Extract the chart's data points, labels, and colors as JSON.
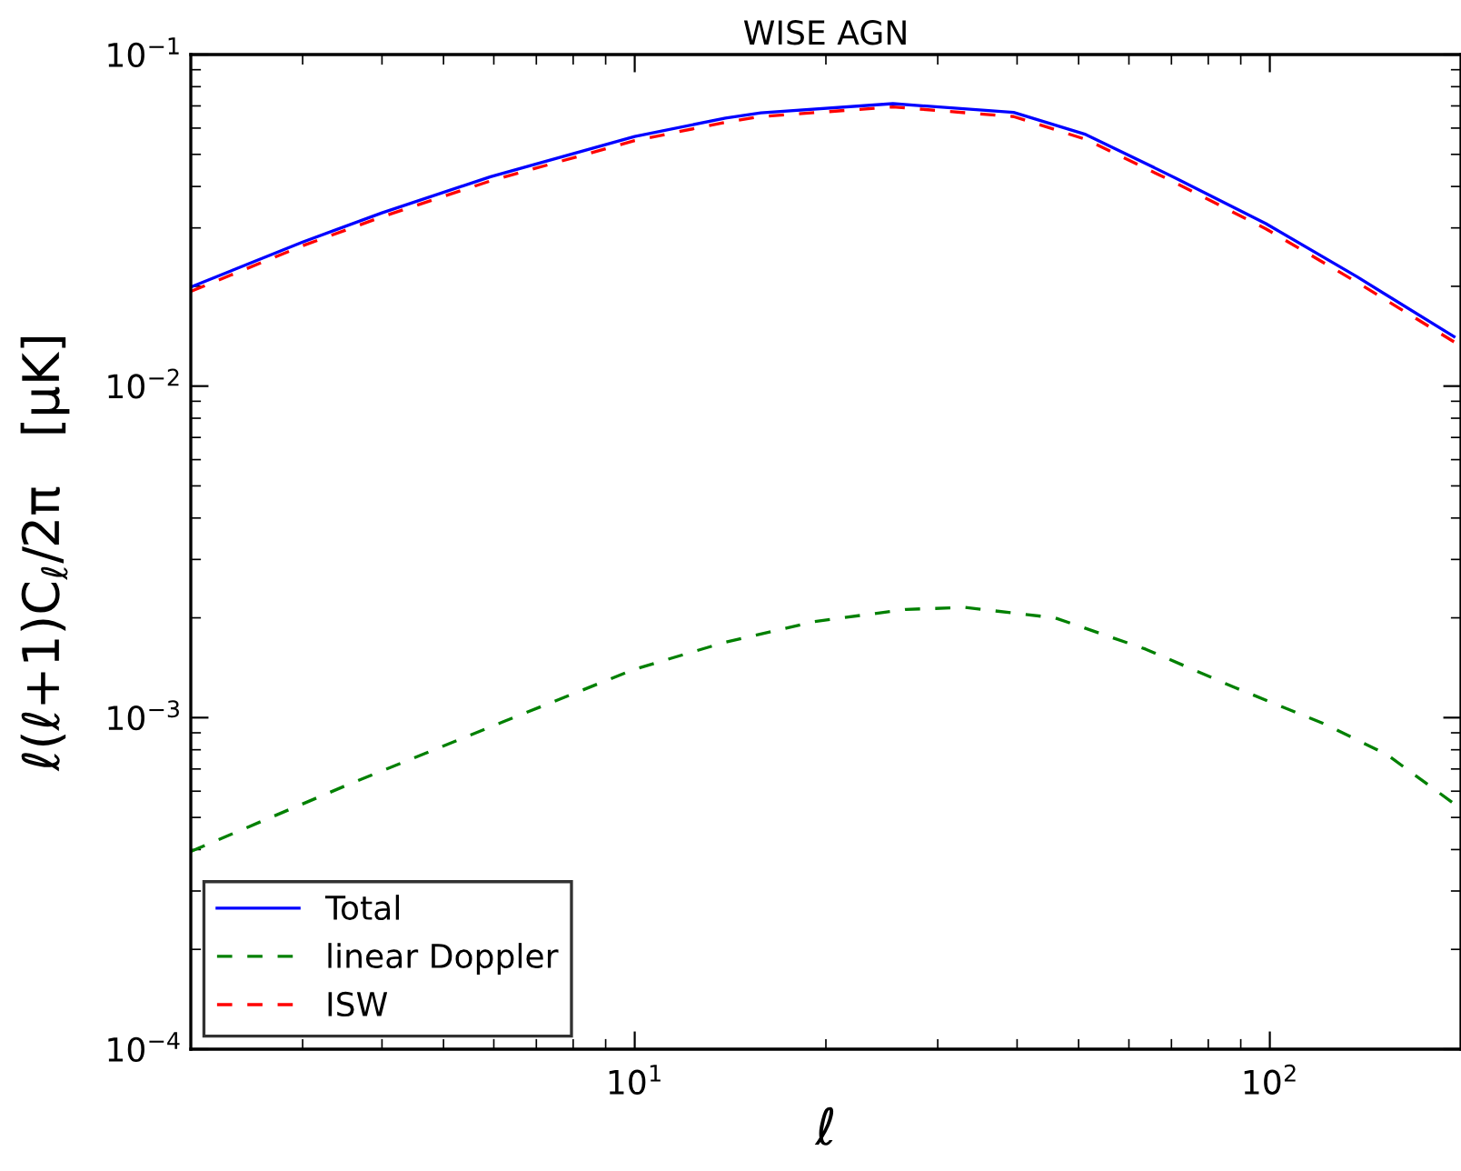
{
  "chart_data": {
    "type": "line",
    "title": "WISE AGN",
    "xlabel": "ℓ",
    "ylabel": "ℓ(ℓ+1)C$_{ℓ}$/2π   [μK]",
    "log": "xy",
    "xlim": [
      2,
      200
    ],
    "ylim": [
      0.0001,
      0.1
    ],
    "xticks": [
      {
        "value": 10,
        "label": "10$^{1}$"
      },
      {
        "value": 100,
        "label": "10$^{2}$"
      }
    ],
    "yticks": [
      {
        "value": 0.0001,
        "label": "10$^{−4}$"
      },
      {
        "value": 0.001,
        "label": "10$^{−3}$"
      },
      {
        "value": 0.01,
        "label": "10$^{−2}$"
      },
      {
        "value": 0.1,
        "label": "10$^{−1}$"
      }
    ],
    "grid": false,
    "legend": "bottom left",
    "marker": "none",
    "series": [
      {
        "name": "Total",
        "color": "#0000ff",
        "line_style": "solid",
        "x": [
          2.0,
          3.0,
          4.0,
          5.93,
          10,
          13.9,
          15.8,
          25.5,
          39.5,
          51.3,
          71.1,
          98.6,
          137,
          195
        ],
        "values": [
          0.0199,
          0.0272,
          0.0333,
          0.0428,
          0.0566,
          0.0643,
          0.0667,
          0.0711,
          0.0669,
          0.0574,
          0.0424,
          0.0309,
          0.0214,
          0.0141
        ]
      },
      {
        "name": "linear Doppler",
        "color": "#008000",
        "line_style": "dashed",
        "x": [
          2.0,
          3.51,
          6.2,
          10,
          13.9,
          19.2,
          26.7,
          33.1,
          45.9,
          63.7,
          88.3,
          122,
          153,
          195
        ],
        "values": [
          0.000395,
          0.000624,
          0.000971,
          0.0014,
          0.00169,
          0.00195,
          0.00212,
          0.00215,
          0.002,
          0.00161,
          0.00123,
          0.000957,
          0.000773,
          0.00055
        ]
      },
      {
        "name": "ISW",
        "color": "#ff0000",
        "line_style": "dashed",
        "x": [
          2.0,
          3.0,
          4.0,
          5.93,
          10,
          13.9,
          15.8,
          25.5,
          39.5,
          51.3,
          71.1,
          98.6,
          137,
          195
        ],
        "values": [
          0.0193,
          0.0265,
          0.0324,
          0.0416,
          0.055,
          0.0625,
          0.065,
          0.0695,
          0.065,
          0.0555,
          0.041,
          0.0298,
          0.0206,
          0.0136
        ]
      }
    ]
  }
}
